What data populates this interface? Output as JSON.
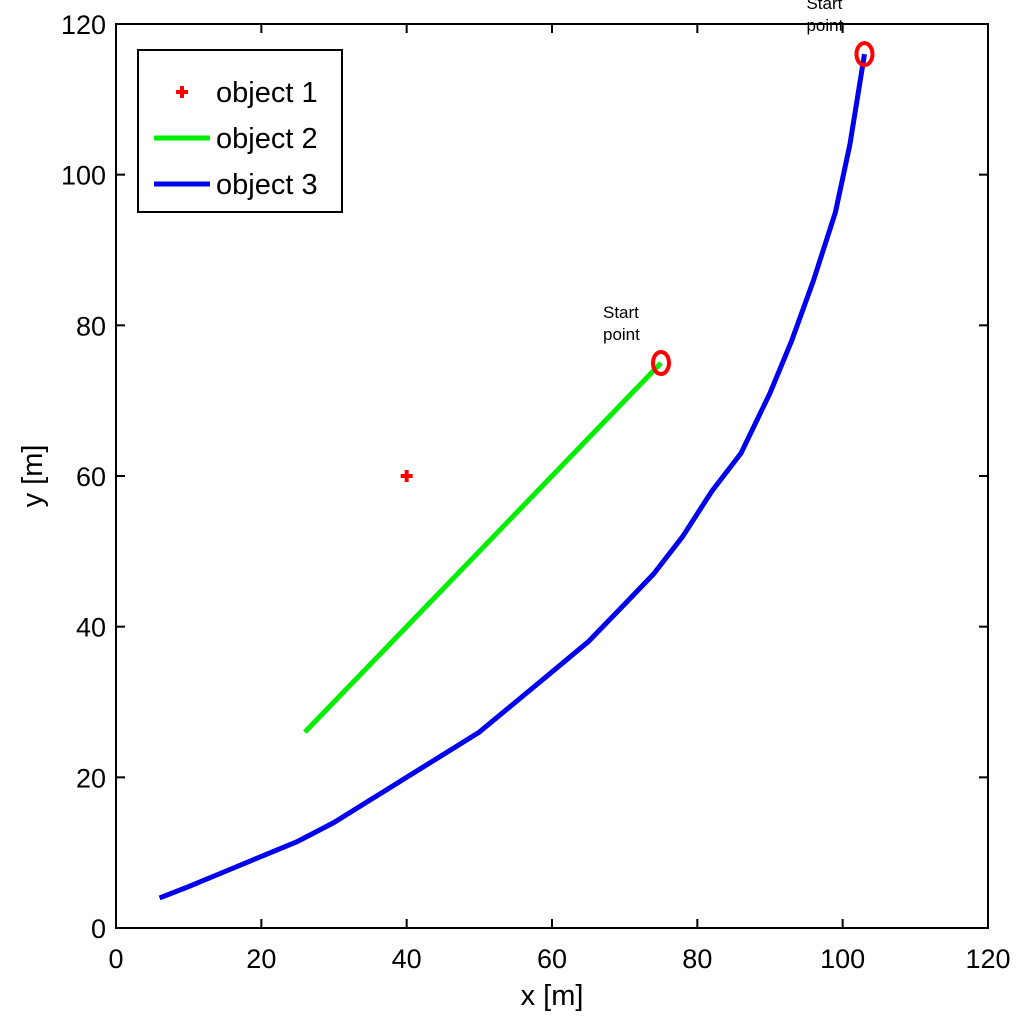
{
  "chart_data": {
    "type": "line",
    "xlabel": "x [m]",
    "ylabel": "y [m]",
    "xlim": [
      0,
      120
    ],
    "ylim": [
      0,
      120
    ],
    "xticks": [
      0,
      20,
      40,
      60,
      80,
      100,
      120
    ],
    "yticks": [
      0,
      20,
      40,
      60,
      80,
      100,
      120
    ],
    "grid": false,
    "legend_position": "top-left",
    "series": [
      {
        "name": "object 1",
        "kind": "marker",
        "marker": "plus",
        "color": "#ff0000",
        "points": [
          [
            40,
            60
          ]
        ]
      },
      {
        "name": "object 2",
        "kind": "line",
        "color": "#00ee00",
        "points": [
          [
            75,
            75
          ],
          [
            26,
            26
          ]
        ]
      },
      {
        "name": "object 3",
        "kind": "line",
        "color": "#0000ee",
        "points": [
          [
            103,
            116
          ],
          [
            101,
            104
          ],
          [
            99,
            95
          ],
          [
            96,
            86
          ],
          [
            93,
            78
          ],
          [
            90,
            71
          ],
          [
            86,
            63
          ],
          [
            82,
            58
          ],
          [
            78,
            52
          ],
          [
            74,
            47
          ],
          [
            70,
            43
          ],
          [
            65,
            38
          ],
          [
            60,
            34
          ],
          [
            55,
            30
          ],
          [
            50,
            26
          ],
          [
            45,
            23
          ],
          [
            40,
            20
          ],
          [
            35,
            17
          ],
          [
            30,
            14
          ],
          [
            25,
            11.5
          ],
          [
            20,
            9.5
          ],
          [
            15,
            7.5
          ],
          [
            10,
            5.5
          ],
          [
            6,
            4
          ]
        ]
      }
    ],
    "annotations": [
      {
        "text": [
          "Start",
          "point"
        ],
        "target": [
          75,
          75
        ],
        "marker": "circle",
        "color": "#ff0000"
      },
      {
        "text": [
          "Start",
          "point"
        ],
        "target": [
          103,
          116
        ],
        "marker": "circle",
        "color": "#ff0000"
      }
    ]
  }
}
